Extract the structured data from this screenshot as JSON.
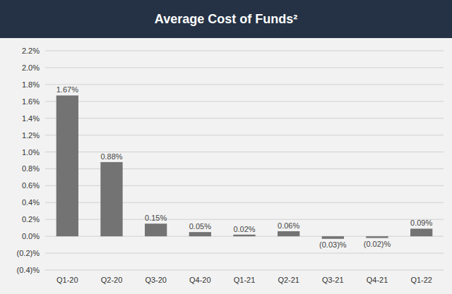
{
  "chart_data": {
    "type": "bar",
    "title": "Average Cost of Funds²",
    "categories": [
      "Q1-20",
      "Q2-20",
      "Q3-20",
      "Q4-20",
      "Q1-21",
      "Q2-21",
      "Q3-21",
      "Q4-21",
      "Q1-22"
    ],
    "values": [
      1.67,
      0.88,
      0.15,
      0.05,
      0.02,
      0.06,
      -0.03,
      -0.02,
      0.09
    ],
    "value_labels": [
      "1.67%",
      "0.88%",
      "0.15%",
      "0.05%",
      "0.02%",
      "0.06%",
      "(0.03)%",
      "(0.02)%",
      "0.09%"
    ],
    "data_labels": true,
    "color": "#737373",
    "ylim": [
      -0.4,
      2.2
    ],
    "yticks": [
      {
        "value": -0.4,
        "label": "(0.4)%"
      },
      {
        "value": -0.2,
        "label": "(0.2)%"
      },
      {
        "value": 0,
        "label": "0.0%"
      },
      {
        "value": 0.2,
        "label": "0.2%"
      },
      {
        "value": 0.4,
        "label": "0.4%"
      },
      {
        "value": 0.6,
        "label": "0.6%"
      },
      {
        "value": 0.8,
        "label": "0.8%"
      },
      {
        "value": 1,
        "label": "1.0%"
      },
      {
        "value": 1.2,
        "label": "1.2%"
      },
      {
        "value": 1.4,
        "label": "1.4%"
      },
      {
        "value": 1.6,
        "label": "1.6%"
      },
      {
        "value": 1.8,
        "label": "1.8%"
      },
      {
        "value": 2,
        "label": "2.0%"
      },
      {
        "value": 2.2,
        "label": "2.2%"
      }
    ],
    "grid": true
  }
}
